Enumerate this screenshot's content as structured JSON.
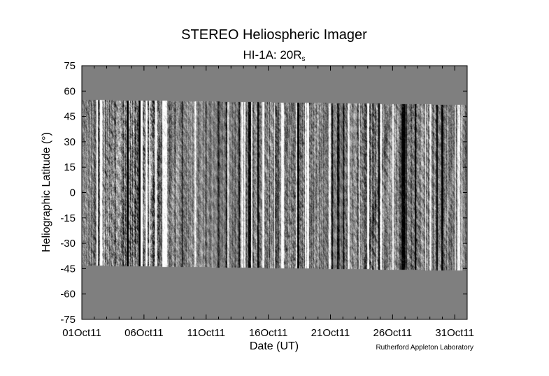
{
  "chart_data": {
    "type": "heatmap",
    "title": "STEREO Heliospheric Imager",
    "subtitle": {
      "text": "HI-1A: 20R",
      "subscript": "s"
    },
    "xlabel": "Date (UT)",
    "ylabel": "Heliographic Latitude (°)",
    "x_tick_labels": [
      "01Oct11",
      "06Oct11",
      "11Oct11",
      "16Oct11",
      "21Oct11",
      "26Oct11",
      "31Oct11"
    ],
    "x_tick_days": [
      1,
      6,
      11,
      16,
      21,
      26,
      31
    ],
    "x_range_days": [
      1,
      32
    ],
    "y_ticks": [
      75,
      60,
      45,
      30,
      15,
      0,
      -15,
      -30,
      -45,
      -60,
      -75
    ],
    "ylim": [
      -75,
      75
    ],
    "data_coverage": {
      "north_limit_deg": [
        {
          "day": 1,
          "lat": 55
        },
        {
          "day": 32,
          "lat": 52
        }
      ],
      "south_limit_deg": [
        {
          "day": 1,
          "lat": -43
        },
        {
          "day": 32,
          "lat": -46
        }
      ]
    },
    "no_data_color": "#7f7f7f",
    "colormap": "grayscale running-difference",
    "credit": "Rutherford Appleton Laboratory"
  }
}
